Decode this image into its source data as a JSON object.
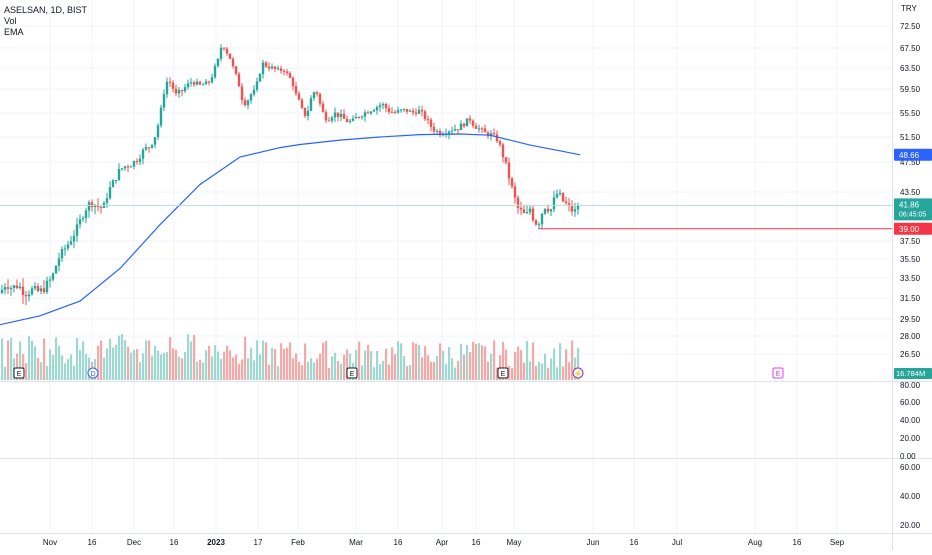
{
  "legend": {
    "symbol_line": "ASELSAN, 1D, BIST",
    "vol_label": "Vol",
    "ema_label": "EMA"
  },
  "chart_data": {
    "type": "candlestick",
    "currency": "TRY",
    "y_ticks": [
      "72.50",
      "67.50",
      "63.50",
      "59.50",
      "55.50",
      "51.50",
      "47.50",
      "43.50",
      "37.50",
      "35.50",
      "33.50",
      "31.50",
      "29.50",
      "28.00",
      "26.50"
    ],
    "x_ticks": [
      "Nov",
      "16",
      "Dec",
      "16",
      "2023",
      "17",
      "Feb",
      "Mar",
      "16",
      "Apr",
      "16",
      "May",
      "Jun",
      "16",
      "Jul",
      "Aug",
      "16",
      "Sep"
    ],
    "labels": {
      "ema_value": "48.66",
      "last_price": "41.86",
      "countdown": "06:45:05",
      "alert_price": "39.00",
      "volume_value": "16.784M"
    },
    "events": {
      "earnings": "E",
      "dividend": "D",
      "split": "⚡"
    },
    "oscillator1_ticks": [
      "80.00",
      "60.00",
      "40.00",
      "20.00",
      "0.00"
    ],
    "oscillator2_ticks": [
      "60.00",
      "40.00",
      "20.00"
    ],
    "colors": {
      "up": "#26a69a",
      "down": "#ef5350",
      "ema": "#2962ff",
      "alert": "#f23645",
      "grid": "#e0e3eb"
    },
    "price_path": [
      [
        0,
        32.0
      ],
      [
        6,
        33.0
      ],
      [
        12,
        32.5
      ],
      [
        18,
        32.8
      ],
      [
        25,
        32.0
      ],
      [
        32,
        32.3
      ],
      [
        40,
        32.1
      ],
      [
        45,
        32.6
      ],
      [
        52,
        33.5
      ],
      [
        58,
        35.5
      ],
      [
        64,
        36.5
      ],
      [
        70,
        37.5
      ],
      [
        76,
        38.8
      ],
      [
        82,
        40.5
      ],
      [
        86,
        41.5
      ],
      [
        90,
        42.2
      ],
      [
        95,
        42.0
      ],
      [
        100,
        41.5
      ],
      [
        104,
        41.8
      ],
      [
        108,
        43.5
      ],
      [
        112,
        44.5
      ],
      [
        116,
        45.5
      ],
      [
        120,
        46.5
      ],
      [
        126,
        47.0
      ],
      [
        132,
        47.3
      ],
      [
        138,
        48.0
      ],
      [
        144,
        49.5
      ],
      [
        150,
        50.0
      ],
      [
        156,
        52.0
      ],
      [
        160,
        55.0
      ],
      [
        164,
        59.0
      ],
      [
        168,
        61.5
      ],
      [
        172,
        60.0
      ],
      [
        176,
        58.5
      ],
      [
        182,
        59.2
      ],
      [
        186,
        60.0
      ],
      [
        192,
        61.0
      ],
      [
        196,
        60.5
      ],
      [
        200,
        60.2
      ],
      [
        206,
        60.5
      ],
      [
        210,
        61.0
      ],
      [
        214,
        63.0
      ],
      [
        218,
        65.0
      ],
      [
        222,
        68.5
      ],
      [
        226,
        67.0
      ],
      [
        230,
        65.5
      ],
      [
        234,
        63.0
      ],
      [
        238,
        61.0
      ],
      [
        242,
        58.0
      ],
      [
        246,
        57.0
      ],
      [
        250,
        58.5
      ],
      [
        254,
        59.0
      ],
      [
        258,
        61.0
      ],
      [
        262,
        64.5
      ],
      [
        266,
        64.0
      ],
      [
        272,
        63.5
      ],
      [
        278,
        63.0
      ],
      [
        284,
        63.2
      ],
      [
        288,
        62.0
      ],
      [
        292,
        61.0
      ],
      [
        296,
        58.5
      ],
      [
        300,
        57.0
      ],
      [
        304,
        55.0
      ],
      [
        308,
        56.0
      ],
      [
        312,
        58.5
      ],
      [
        316,
        59.5
      ],
      [
        320,
        57.0
      ],
      [
        324,
        55.0
      ],
      [
        328,
        54.5
      ],
      [
        334,
        55.5
      ],
      [
        340,
        55.0
      ],
      [
        346,
        54.2
      ],
      [
        352,
        54.0
      ],
      [
        358,
        55.0
      ],
      [
        364,
        55.5
      ],
      [
        370,
        56.0
      ],
      [
        376,
        56.5
      ],
      [
        382,
        57.0
      ],
      [
        388,
        56.0
      ],
      [
        394,
        55.5
      ],
      [
        400,
        55.8
      ],
      [
        406,
        56.0
      ],
      [
        412,
        55.5
      ],
      [
        418,
        56.0
      ],
      [
        424,
        55.0
      ],
      [
        428,
        54.0
      ],
      [
        432,
        53.0
      ],
      [
        436,
        52.5
      ],
      [
        440,
        52.2
      ],
      [
        446,
        52.5
      ],
      [
        452,
        52.8
      ],
      [
        458,
        53.0
      ],
      [
        462,
        53.5
      ],
      [
        466,
        54.0
      ],
      [
        470,
        54.5
      ],
      [
        474,
        53.5
      ],
      [
        478,
        53.0
      ],
      [
        482,
        52.5
      ],
      [
        486,
        52.0
      ],
      [
        490,
        52.0
      ],
      [
        494,
        51.5
      ],
      [
        498,
        51.0
      ],
      [
        502,
        49.0
      ],
      [
        506,
        47.0
      ],
      [
        510,
        45.0
      ],
      [
        514,
        43.0
      ],
      [
        518,
        41.5
      ],
      [
        522,
        41.0
      ],
      [
        526,
        40.5
      ],
      [
        530,
        41.5
      ],
      [
        534,
        40.0
      ],
      [
        538,
        39.5
      ],
      [
        542,
        41.0
      ],
      [
        546,
        42.0
      ],
      [
        550,
        41.0
      ],
      [
        554,
        42.5
      ],
      [
        558,
        43.5
      ],
      [
        562,
        42.5
      ],
      [
        566,
        42.0
      ],
      [
        570,
        41.5
      ],
      [
        574,
        41.0
      ],
      [
        578,
        41.5
      ],
      [
        580,
        41.86
      ]
    ],
    "ema_path": [
      [
        0,
        29.0
      ],
      [
        40,
        29.8
      ],
      [
        80,
        31.2
      ],
      [
        120,
        34.5
      ],
      [
        160,
        39.5
      ],
      [
        200,
        44.5
      ],
      [
        240,
        48.3
      ],
      [
        280,
        49.8
      ],
      [
        300,
        50.3
      ],
      [
        340,
        51.0
      ],
      [
        380,
        51.5
      ],
      [
        420,
        51.9
      ],
      [
        460,
        52.0
      ],
      [
        490,
        51.8
      ],
      [
        510,
        51.0
      ],
      [
        530,
        50.2
      ],
      [
        560,
        49.3
      ],
      [
        580,
        48.66
      ]
    ]
  }
}
